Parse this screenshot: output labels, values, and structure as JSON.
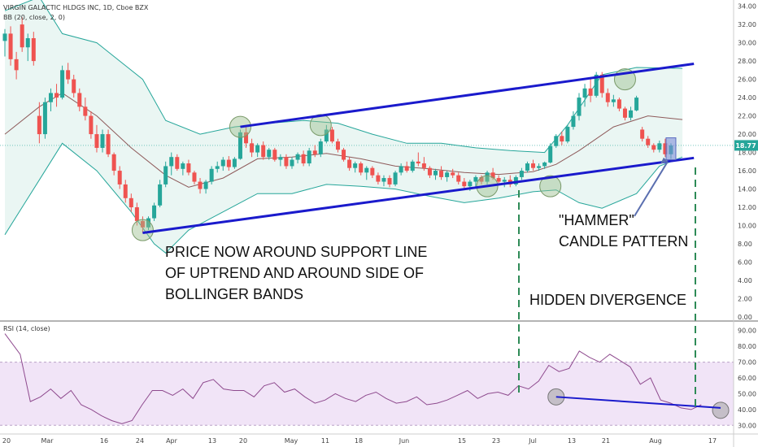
{
  "header": {
    "title": "VIRGIN GALACTIC HLDGS INC, 1D, Cboe BZX",
    "bb_label": "BB (20, close, 2, 0)",
    "rsi_label": "RSI (14, close)"
  },
  "price_badge": "18.77",
  "annotations": {
    "support_line_1": "PRICE NOW AROUND SUPPORT LINE",
    "support_line_2": "OF UPTREND AND AROUND SIDE OF",
    "support_line_3": "BOLLINGER BANDS",
    "hammer_1": "\"HAMMER\"",
    "hammer_2": "CANDLE PATTERN",
    "divergence": "HIDDEN DIVERGENCE"
  },
  "colors": {
    "up": "#26a69a",
    "down": "#ef5350",
    "trend_line": "#1a1acc",
    "bb_band": "#26a69a",
    "bb_fill": "#e8f5f2",
    "basis": "#8e5a5a",
    "rsi_line": "#8e4a8e",
    "rsi_zone": "#f1e4f7",
    "marker": "#9bbf8e",
    "divergence_line": "#2e8b57"
  },
  "chart_data": [
    {
      "type": "candlestick",
      "title": "VIRGIN GALACTIC HLDGS INC, 1D, Cboe BZX",
      "x_tick_labels": [
        "20",
        "Mar",
        "16",
        "24",
        "Apr",
        "13",
        "20",
        "May",
        "11",
        "18",
        "Jun",
        "15",
        "23",
        "Jul",
        "13",
        "21",
        "Aug",
        "17"
      ],
      "y_tick_labels": [
        "34.00",
        "32.00",
        "30.00",
        "28.00",
        "26.00",
        "24.00",
        "22.00",
        "20.00",
        "18.00",
        "16.00",
        "14.00",
        "12.00",
        "10.00",
        "8.00",
        "6.00",
        "4.00",
        "2.00",
        "0.00"
      ],
      "ylim": [
        0,
        34.5
      ],
      "last_price": 18.77,
      "candles": [
        [
          30.2,
          31.5,
          28.5,
          31.0
        ],
        [
          31.0,
          31.8,
          27.5,
          28.2
        ],
        [
          28.2,
          29.0,
          26.0,
          27.0
        ],
        [
          32.0,
          32.8,
          29.0,
          29.5
        ],
        [
          29.5,
          31.0,
          28.0,
          30.5
        ],
        [
          30.5,
          31.2,
          27.5,
          28.0
        ],
        [
          22.0,
          23.5,
          19.0,
          20.0
        ],
        [
          20.0,
          24.0,
          19.5,
          23.5
        ],
        [
          23.5,
          25.0,
          22.5,
          24.5
        ],
        [
          24.5,
          25.5,
          23.0,
          24.0
        ],
        [
          24.0,
          27.5,
          23.8,
          27.0
        ],
        [
          27.0,
          27.8,
          25.5,
          26.0
        ],
        [
          26.0,
          26.5,
          24.0,
          24.5
        ],
        [
          24.5,
          25.0,
          22.5,
          23.0
        ],
        [
          23.0,
          24.0,
          21.5,
          22.0
        ],
        [
          22.0,
          22.5,
          19.5,
          20.0
        ],
        [
          20.0,
          21.0,
          18.0,
          18.5
        ],
        [
          18.5,
          20.5,
          18.0,
          20.0
        ],
        [
          20.0,
          20.5,
          17.5,
          17.8
        ],
        [
          17.8,
          18.0,
          15.5,
          16.0
        ],
        [
          16.0,
          16.5,
          14.0,
          14.5
        ],
        [
          14.5,
          15.0,
          12.5,
          13.0
        ],
        [
          13.0,
          13.5,
          11.5,
          12.0
        ],
        [
          12.0,
          12.5,
          10.0,
          10.5
        ],
        [
          10.5,
          11.0,
          9.2,
          9.8
        ],
        [
          9.8,
          11.0,
          9.5,
          10.8
        ],
        [
          10.8,
          12.5,
          10.5,
          12.2
        ],
        [
          12.2,
          15.0,
          12.0,
          14.5
        ],
        [
          14.5,
          17.0,
          14.2,
          16.5
        ],
        [
          16.5,
          18.0,
          15.5,
          17.5
        ],
        [
          17.5,
          17.8,
          16.0,
          16.2
        ],
        [
          16.2,
          17.0,
          15.5,
          16.8
        ],
        [
          16.8,
          17.2,
          15.5,
          15.8
        ],
        [
          15.8,
          16.0,
          14.5,
          14.8
        ],
        [
          14.8,
          15.2,
          13.5,
          14.0
        ],
        [
          14.0,
          15.0,
          13.5,
          14.8
        ],
        [
          14.8,
          16.5,
          14.5,
          16.2
        ],
        [
          16.2,
          17.0,
          15.8,
          16.5
        ],
        [
          16.5,
          17.5,
          16.0,
          17.2
        ],
        [
          17.2,
          17.6,
          16.0,
          16.4
        ],
        [
          16.4,
          17.5,
          16.2,
          17.3
        ],
        [
          17.3,
          20.5,
          17.2,
          20.2
        ],
        [
          20.2,
          20.8,
          18.5,
          19.0
        ],
        [
          19.0,
          19.5,
          17.5,
          18.0
        ],
        [
          18.0,
          19.0,
          17.5,
          18.8
        ],
        [
          18.8,
          19.2,
          17.2,
          17.5
        ],
        [
          17.5,
          18.5,
          17.2,
          18.3
        ],
        [
          18.3,
          18.5,
          17.0,
          17.2
        ],
        [
          17.2,
          17.8,
          16.5,
          17.5
        ],
        [
          17.5,
          17.8,
          16.2,
          16.5
        ],
        [
          16.5,
          17.5,
          16.2,
          17.2
        ],
        [
          17.2,
          18.0,
          16.8,
          17.8
        ],
        [
          17.8,
          18.2,
          16.5,
          16.8
        ],
        [
          16.8,
          18.5,
          16.5,
          18.2
        ],
        [
          18.2,
          18.8,
          17.5,
          17.8
        ],
        [
          17.8,
          19.5,
          17.5,
          19.2
        ],
        [
          19.2,
          21.0,
          19.0,
          20.5
        ],
        [
          20.5,
          20.8,
          19.0,
          19.2
        ],
        [
          19.2,
          19.5,
          18.0,
          18.3
        ],
        [
          18.3,
          18.5,
          17.0,
          17.2
        ],
        [
          17.2,
          17.5,
          16.0,
          16.3
        ],
        [
          16.3,
          17.0,
          15.8,
          16.8
        ],
        [
          16.8,
          17.0,
          15.5,
          15.8
        ],
        [
          15.8,
          16.5,
          15.0,
          16.3
        ],
        [
          16.3,
          16.5,
          15.2,
          15.5
        ],
        [
          15.5,
          15.8,
          14.5,
          14.8
        ],
        [
          14.8,
          15.5,
          14.3,
          15.2
        ],
        [
          15.2,
          15.5,
          14.2,
          14.5
        ],
        [
          14.5,
          16.0,
          14.3,
          15.8
        ],
        [
          15.8,
          16.8,
          15.5,
          16.5
        ],
        [
          16.5,
          17.0,
          15.8,
          16.0
        ],
        [
          16.0,
          17.2,
          15.8,
          17.0
        ],
        [
          17.0,
          18.0,
          16.5,
          16.8
        ],
        [
          16.8,
          17.5,
          16.0,
          16.3
        ],
        [
          16.3,
          16.5,
          15.2,
          15.5
        ],
        [
          15.5,
          16.2,
          15.0,
          16.0
        ],
        [
          16.0,
          16.5,
          15.0,
          15.3
        ],
        [
          15.3,
          16.0,
          14.8,
          15.8
        ],
        [
          15.8,
          16.2,
          15.2,
          15.5
        ],
        [
          15.5,
          15.8,
          14.5,
          14.8
        ],
        [
          14.8,
          15.2,
          14.0,
          14.3
        ],
        [
          14.3,
          15.0,
          13.8,
          14.8
        ],
        [
          14.8,
          15.5,
          14.2,
          15.3
        ],
        [
          15.3,
          15.5,
          14.5,
          14.8
        ],
        [
          14.8,
          16.0,
          14.5,
          15.8
        ],
        [
          15.8,
          16.3,
          15.0,
          15.2
        ],
        [
          15.2,
          15.5,
          14.5,
          14.8
        ],
        [
          14.8,
          15.3,
          14.2,
          15.0
        ],
        [
          15.0,
          15.5,
          14.2,
          14.5
        ],
        [
          14.5,
          15.5,
          14.3,
          15.3
        ],
        [
          15.3,
          16.3,
          15.0,
          16.0
        ],
        [
          16.0,
          17.0,
          15.8,
          16.8
        ],
        [
          16.8,
          17.2,
          16.0,
          16.3
        ],
        [
          16.3,
          16.8,
          16.0,
          16.5
        ],
        [
          16.5,
          17.0,
          16.2,
          16.9
        ],
        [
          16.9,
          19.0,
          16.8,
          18.7
        ],
        [
          18.7,
          20.0,
          18.5,
          19.8
        ],
        [
          19.8,
          20.3,
          18.8,
          19.2
        ],
        [
          19.2,
          21.0,
          19.0,
          20.8
        ],
        [
          20.8,
          22.5,
          20.5,
          22.0
        ],
        [
          22.0,
          24.5,
          21.5,
          24.0
        ],
        [
          24.0,
          25.5,
          23.0,
          25.0
        ],
        [
          25.0,
          26.2,
          23.5,
          24.2
        ],
        [
          24.2,
          26.8,
          24.0,
          26.5
        ],
        [
          26.5,
          26.8,
          24.0,
          24.5
        ],
        [
          24.5,
          25.0,
          23.0,
          23.5
        ],
        [
          23.5,
          24.3,
          23.0,
          23.8
        ],
        [
          23.8,
          24.0,
          22.5,
          22.8
        ],
        [
          22.8,
          23.0,
          21.5,
          21.8
        ],
        [
          21.8,
          23.0,
          21.5,
          22.6
        ],
        [
          22.6,
          24.2,
          22.5,
          24.0
        ],
        [
          20.5,
          20.8,
          19.2,
          19.5
        ],
        [
          19.5,
          19.8,
          18.5,
          18.8
        ],
        [
          18.8,
          19.0,
          18.0,
          18.3
        ],
        [
          18.3,
          19.3,
          18.0,
          19.0
        ],
        [
          19.0,
          19.5,
          17.5,
          17.8
        ],
        [
          17.8,
          19.0,
          17.3,
          18.77
        ]
      ],
      "bollinger": {
        "upper": [
          [
            0,
            33.5
          ],
          [
            6,
            35
          ],
          [
            10,
            31
          ],
          [
            16,
            30
          ],
          [
            24,
            26
          ],
          [
            28,
            21.5
          ],
          [
            34,
            20
          ],
          [
            40,
            20.8
          ],
          [
            46,
            21.2
          ],
          [
            52,
            21.5
          ],
          [
            58,
            21.2
          ],
          [
            64,
            20.0
          ],
          [
            70,
            19.0
          ],
          [
            76,
            19.0
          ],
          [
            82,
            18.5
          ],
          [
            88,
            18.2
          ],
          [
            94,
            18.0
          ],
          [
            98,
            21.0
          ],
          [
            104,
            26.5
          ],
          [
            110,
            27.3
          ],
          [
            118,
            27.2
          ]
        ],
        "basis": [
          [
            0,
            20.0
          ],
          [
            6,
            23.0
          ],
          [
            10,
            24.5
          ],
          [
            16,
            22.0
          ],
          [
            22,
            18.5
          ],
          [
            28,
            15.5
          ],
          [
            32,
            14.2
          ],
          [
            38,
            15.2
          ],
          [
            44,
            17.3
          ],
          [
            50,
            17.5
          ],
          [
            56,
            17.9
          ],
          [
            62,
            17.3
          ],
          [
            68,
            16.5
          ],
          [
            74,
            16.2
          ],
          [
            80,
            15.8
          ],
          [
            86,
            15.6
          ],
          [
            92,
            15.9
          ],
          [
            96,
            16.7
          ],
          [
            100,
            18.2
          ],
          [
            106,
            20.8
          ],
          [
            112,
            22.0
          ],
          [
            118,
            21.6
          ]
        ],
        "lower": [
          [
            0,
            9.0
          ],
          [
            6,
            15.0
          ],
          [
            10,
            19.0
          ],
          [
            16,
            16.0
          ],
          [
            22,
            11.5
          ],
          [
            26,
            8.0
          ],
          [
            28,
            7.0
          ],
          [
            32,
            9.5
          ],
          [
            38,
            11.5
          ],
          [
            44,
            13.5
          ],
          [
            50,
            13.5
          ],
          [
            56,
            14.5
          ],
          [
            62,
            14.3
          ],
          [
            68,
            14.0
          ],
          [
            74,
            13.2
          ],
          [
            80,
            12.5
          ],
          [
            86,
            13.0
          ],
          [
            92,
            13.7
          ],
          [
            96,
            13.9
          ],
          [
            100,
            12.5
          ],
          [
            104,
            11.9
          ],
          [
            110,
            13.5
          ],
          [
            114,
            16.5
          ],
          [
            118,
            17.5
          ]
        ]
      },
      "trend_lines": [
        {
          "from": [
            24,
            9.2
          ],
          "to": [
            120,
            17.4
          ]
        },
        {
          "from": [
            41,
            20.8
          ],
          "to": [
            120,
            27.7
          ]
        }
      ],
      "highlight_circles": [
        [
          24,
          9.5
        ],
        [
          41,
          20.8
        ],
        [
          55,
          21.0
        ],
        [
          84,
          14.3
        ],
        [
          95,
          14.3
        ],
        [
          108,
          26.0
        ]
      ]
    },
    {
      "type": "line",
      "title": "RSI (14, close)",
      "y_tick_labels": [
        "90.00",
        "80.00",
        "70.00",
        "60.00",
        "50.00",
        "40.00",
        "30.00"
      ],
      "ylim": [
        25,
        95
      ],
      "band": [
        30,
        70
      ],
      "values": [
        [
          0,
          88
        ],
        [
          3,
          75
        ],
        [
          5,
          45
        ],
        [
          7,
          48
        ],
        [
          9,
          53
        ],
        [
          11,
          47
        ],
        [
          13,
          52
        ],
        [
          15,
          43
        ],
        [
          17,
          40
        ],
        [
          19,
          36
        ],
        [
          21,
          33
        ],
        [
          23,
          31
        ],
        [
          25,
          33
        ],
        [
          27,
          43
        ],
        [
          29,
          52
        ],
        [
          31,
          52
        ],
        [
          33,
          49
        ],
        [
          35,
          53
        ],
        [
          37,
          47
        ],
        [
          39,
          57
        ],
        [
          41,
          59
        ],
        [
          43,
          53
        ],
        [
          45,
          52
        ],
        [
          47,
          52
        ],
        [
          49,
          48
        ],
        [
          51,
          55
        ],
        [
          53,
          57
        ],
        [
          55,
          51
        ],
        [
          57,
          53
        ],
        [
          59,
          48
        ],
        [
          61,
          44
        ],
        [
          63,
          46
        ],
        [
          65,
          50
        ],
        [
          67,
          47
        ],
        [
          69,
          45
        ],
        [
          71,
          49
        ],
        [
          73,
          51
        ],
        [
          75,
          47
        ],
        [
          77,
          44
        ],
        [
          79,
          45
        ],
        [
          81,
          48
        ],
        [
          83,
          43
        ],
        [
          85,
          44
        ],
        [
          87,
          46
        ],
        [
          89,
          49
        ],
        [
          91,
          52
        ],
        [
          93,
          47
        ],
        [
          95,
          50
        ],
        [
          97,
          51
        ],
        [
          99,
          49
        ],
        [
          101,
          55
        ],
        [
          103,
          53
        ],
        [
          105,
          58
        ],
        [
          107,
          68
        ],
        [
          109,
          64
        ],
        [
          111,
          66
        ],
        [
          113,
          77
        ],
        [
          115,
          73
        ],
        [
          117,
          70
        ],
        [
          119,
          75
        ],
        [
          121,
          71
        ],
        [
          123,
          67
        ],
        [
          125,
          56
        ],
        [
          127,
          60
        ],
        [
          129,
          46
        ],
        [
          131,
          44
        ],
        [
          133,
          41
        ],
        [
          135,
          40
        ],
        [
          137,
          43
        ]
      ],
      "divergence_line": {
        "from": [
          96,
          48
        ],
        "to": [
          134,
          41
        ]
      }
    }
  ]
}
